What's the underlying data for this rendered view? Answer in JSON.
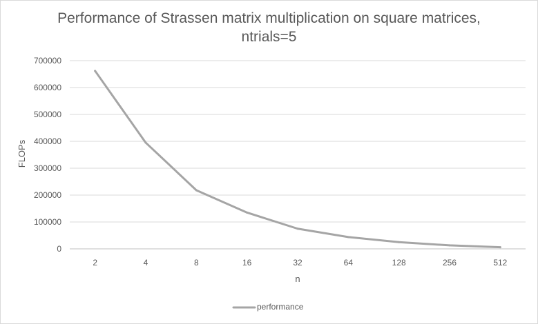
{
  "chart_data": {
    "type": "line",
    "title_lines": [
      "Performance of Strassen matrix multiplication on square matrices,",
      "ntrials=5"
    ],
    "xlabel": "n",
    "ylabel": "FLOPs",
    "categories": [
      "2",
      "4",
      "8",
      "16",
      "32",
      "64",
      "128",
      "256",
      "512"
    ],
    "yticks": [
      "0",
      "100000",
      "200000",
      "300000",
      "400000",
      "500000",
      "600000",
      "700000"
    ],
    "ylim": [
      0,
      700000
    ],
    "grid": true,
    "legend_position": "bottom",
    "series": [
      {
        "name": "performance",
        "color": "#a5a5a5",
        "values": [
          662000,
          395000,
          218000,
          135000,
          75000,
          44000,
          25000,
          13000,
          6000
        ]
      }
    ]
  }
}
